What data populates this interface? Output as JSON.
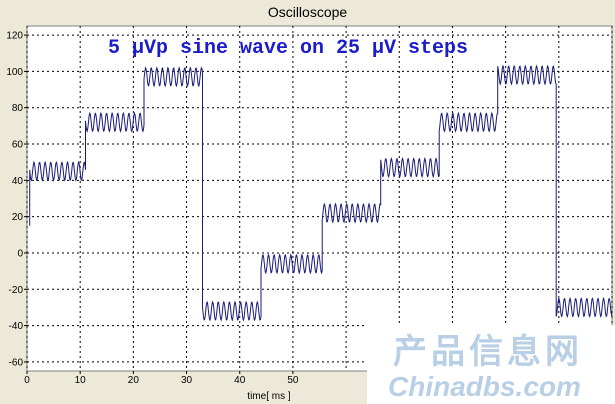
{
  "window": {
    "title": "Oscilloscope"
  },
  "watermark": {
    "chinese": "产品信息网",
    "english": "Chinadbs.com"
  },
  "colors": {
    "trace": "#1a1a7a",
    "annotation": "#1c1ccc",
    "grid": "#000000",
    "background": "#ffffff"
  },
  "chart_data": {
    "type": "line",
    "title": "",
    "annotation": "5 μVp sine wave on 25 μV steps",
    "xlabel": "time[ ms ]",
    "ylabel": "",
    "xlim": [
      0,
      110
    ],
    "ylim": [
      -65,
      125
    ],
    "xticks": [
      0,
      10,
      20,
      30,
      40,
      50
    ],
    "yticks": [
      -60,
      -40,
      -20,
      0,
      20,
      40,
      60,
      80,
      100,
      120
    ],
    "grid": true,
    "sine_amplitude": 5,
    "sine_period_ms": 1.05,
    "series": [
      {
        "steps": [
          {
            "x_start": 0.5,
            "x_end": 11,
            "level": 45
          },
          {
            "x_start": 11,
            "x_end": 22,
            "level": 72
          },
          {
            "x_start": 22,
            "x_end": 33,
            "level": 97
          },
          {
            "x_start": 33,
            "x_end": 44,
            "level": -32
          },
          {
            "x_start": 44,
            "x_end": 55.5,
            "level": -6
          },
          {
            "x_start": 55.5,
            "x_end": 66.5,
            "level": 22
          },
          {
            "x_start": 66.5,
            "x_end": 77.5,
            "level": 47
          },
          {
            "x_start": 77.5,
            "x_end": 88.5,
            "level": 72
          },
          {
            "x_start": 88.5,
            "x_end": 99.5,
            "level": 98
          },
          {
            "x_start": 99.5,
            "x_end": 110,
            "level": -30
          }
        ]
      }
    ]
  }
}
